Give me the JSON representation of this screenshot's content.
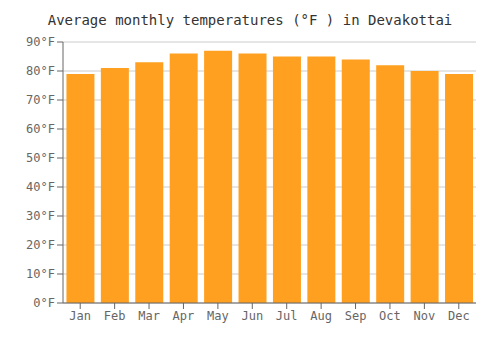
{
  "chart_data": {
    "type": "bar",
    "title": "Average monthly temperatures (°F ) in Devakottai",
    "categories": [
      "Jan",
      "Feb",
      "Mar",
      "Apr",
      "May",
      "Jun",
      "Jul",
      "Aug",
      "Sep",
      "Oct",
      "Nov",
      "Dec"
    ],
    "values": [
      79,
      81,
      83,
      86,
      87,
      86,
      85,
      85,
      84,
      82,
      80,
      79
    ],
    "color": "#FFA020",
    "ylim": [
      0,
      90
    ],
    "yticks": [
      {
        "value": 0,
        "label": "0°F"
      },
      {
        "value": 10,
        "label": "10°F"
      },
      {
        "value": 20,
        "label": "20°F"
      },
      {
        "value": 30,
        "label": "30°F"
      },
      {
        "value": 40,
        "label": "40°F"
      },
      {
        "value": 50,
        "label": "50°F"
      },
      {
        "value": 60,
        "label": "60°F"
      },
      {
        "value": 70,
        "label": "70°F"
      },
      {
        "value": 80,
        "label": "80°F"
      },
      {
        "value": 90,
        "label": "90°F"
      }
    ],
    "grid": true
  }
}
